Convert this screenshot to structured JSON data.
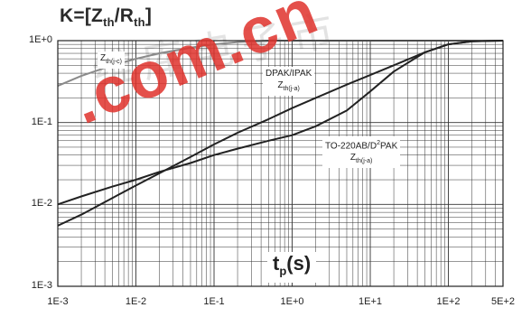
{
  "title": {
    "k": "K=[Z",
    "th1": "th",
    "slash": "/R",
    "th2": "th",
    "close": "]"
  },
  "xlabel": {
    "t": "t",
    "sub": "p",
    "rest": "(s)"
  },
  "annotations": {
    "zthjc": {
      "main": "Z",
      "sub": "th(j-c)"
    },
    "dpak": {
      "line1": "DPAK/IPAK",
      "main": "Z",
      "sub": "th(j-a)"
    },
    "to220": {
      "line1a": "TO-220AB/D",
      "sup": "2",
      "line1b": "PAK",
      "main": "Z",
      "sub": "th(j-a)"
    }
  },
  "watermark": {
    "text": ".com.cn",
    "cn_text": "维库电子市"
  },
  "chart_data": {
    "type": "line",
    "xscale": "log",
    "yscale": "log",
    "xlim": [
      0.001,
      500
    ],
    "ylim": [
      0.001,
      1
    ],
    "x_ticks": [
      {
        "value": 0.001,
        "label": "1E-3"
      },
      {
        "value": 0.01,
        "label": "1E-2"
      },
      {
        "value": 0.1,
        "label": "1E-1"
      },
      {
        "value": 1,
        "label": "1E+0"
      },
      {
        "value": 10,
        "label": "1E+1"
      },
      {
        "value": 100,
        "label": "1E+2"
      },
      {
        "value": 500,
        "label": "5E+2"
      }
    ],
    "y_ticks": [
      {
        "value": 1,
        "label": "1E+0"
      },
      {
        "value": 0.1,
        "label": "1E-1"
      },
      {
        "value": 0.01,
        "label": "1E-2"
      },
      {
        "value": 0.001,
        "label": "1E-3"
      }
    ],
    "grid": true,
    "series": [
      {
        "color": "#8a8a8a",
        "x": [
          0.001,
          0.002,
          0.005,
          0.01,
          0.02,
          0.05,
          0.1,
          0.2,
          0.5,
          1,
          10,
          100,
          500
        ],
        "y": [
          0.28,
          0.37,
          0.5,
          0.6,
          0.7,
          0.82,
          0.9,
          0.96,
          1.0,
          1.0,
          1.0,
          1.0,
          1.0
        ]
      },
      {
        "color": "#222222",
        "x": [
          0.001,
          0.002,
          0.005,
          0.01,
          0.02,
          0.05,
          0.1,
          0.2,
          0.5,
          1,
          2,
          5,
          10,
          20,
          50,
          100,
          200,
          500
        ],
        "y": [
          0.0055,
          0.0075,
          0.012,
          0.017,
          0.024,
          0.038,
          0.054,
          0.075,
          0.11,
          0.15,
          0.2,
          0.29,
          0.38,
          0.5,
          0.72,
          0.9,
          0.98,
          1.0
        ]
      },
      {
        "color": "#222222",
        "x": [
          0.001,
          0.002,
          0.005,
          0.01,
          0.02,
          0.05,
          0.1,
          0.2,
          0.5,
          1,
          2,
          5,
          10,
          20,
          50,
          100,
          200,
          500
        ],
        "y": [
          0.01,
          0.0125,
          0.0165,
          0.02,
          0.025,
          0.032,
          0.04,
          0.048,
          0.06,
          0.07,
          0.09,
          0.14,
          0.24,
          0.42,
          0.72,
          0.9,
          0.98,
          1.0
        ]
      }
    ]
  }
}
